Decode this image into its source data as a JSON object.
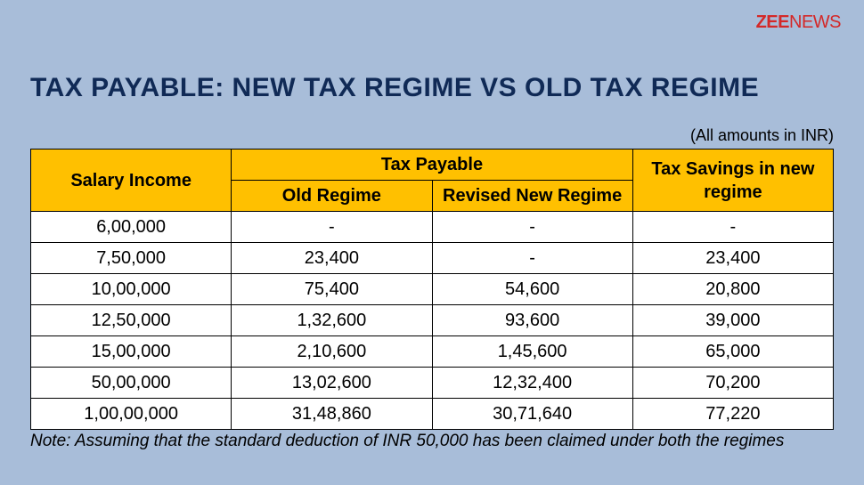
{
  "logo": {
    "left": "ZEE",
    "right": "NEWS"
  },
  "title": "TAX PAYABLE: NEW TAX REGIME VS OLD TAX REGIME",
  "units_note": "(All amounts in INR)",
  "table": {
    "header_row1": {
      "salary": "Salary Income",
      "tax_payable": "Tax Payable",
      "savings": "Tax Savings in new regime"
    },
    "header_row2": {
      "old": "Old Regime",
      "new": "Revised New Regime"
    },
    "rows": [
      {
        "salary": "6,00,000",
        "old": "-",
        "new": "-",
        "savings": "-"
      },
      {
        "salary": "7,50,000",
        "old": "23,400",
        "new": "-",
        "savings": "23,400"
      },
      {
        "salary": "10,00,000",
        "old": "75,400",
        "new": "54,600",
        "savings": "20,800"
      },
      {
        "salary": "12,50,000",
        "old": "1,32,600",
        "new": "93,600",
        "savings": "39,000"
      },
      {
        "salary": "15,00,000",
        "old": "2,10,600",
        "new": "1,45,600",
        "savings": "65,000"
      },
      {
        "salary": "50,00,000",
        "old": "13,02,600",
        "new": "12,32,400",
        "savings": "70,200"
      },
      {
        "salary": "1,00,00,000",
        "old": "31,48,860",
        "new": "30,71,640",
        "savings": "77,220"
      }
    ]
  },
  "footnote": "Note: Assuming that the standard deduction of INR 50,000 has been claimed under both the regimes",
  "colors": {
    "background": "#a8bdd9",
    "header_bg": "#ffc000",
    "title_color": "#102a56",
    "logo_color": "#d42828",
    "cell_bg": "#ffffff",
    "border": "#000000"
  }
}
